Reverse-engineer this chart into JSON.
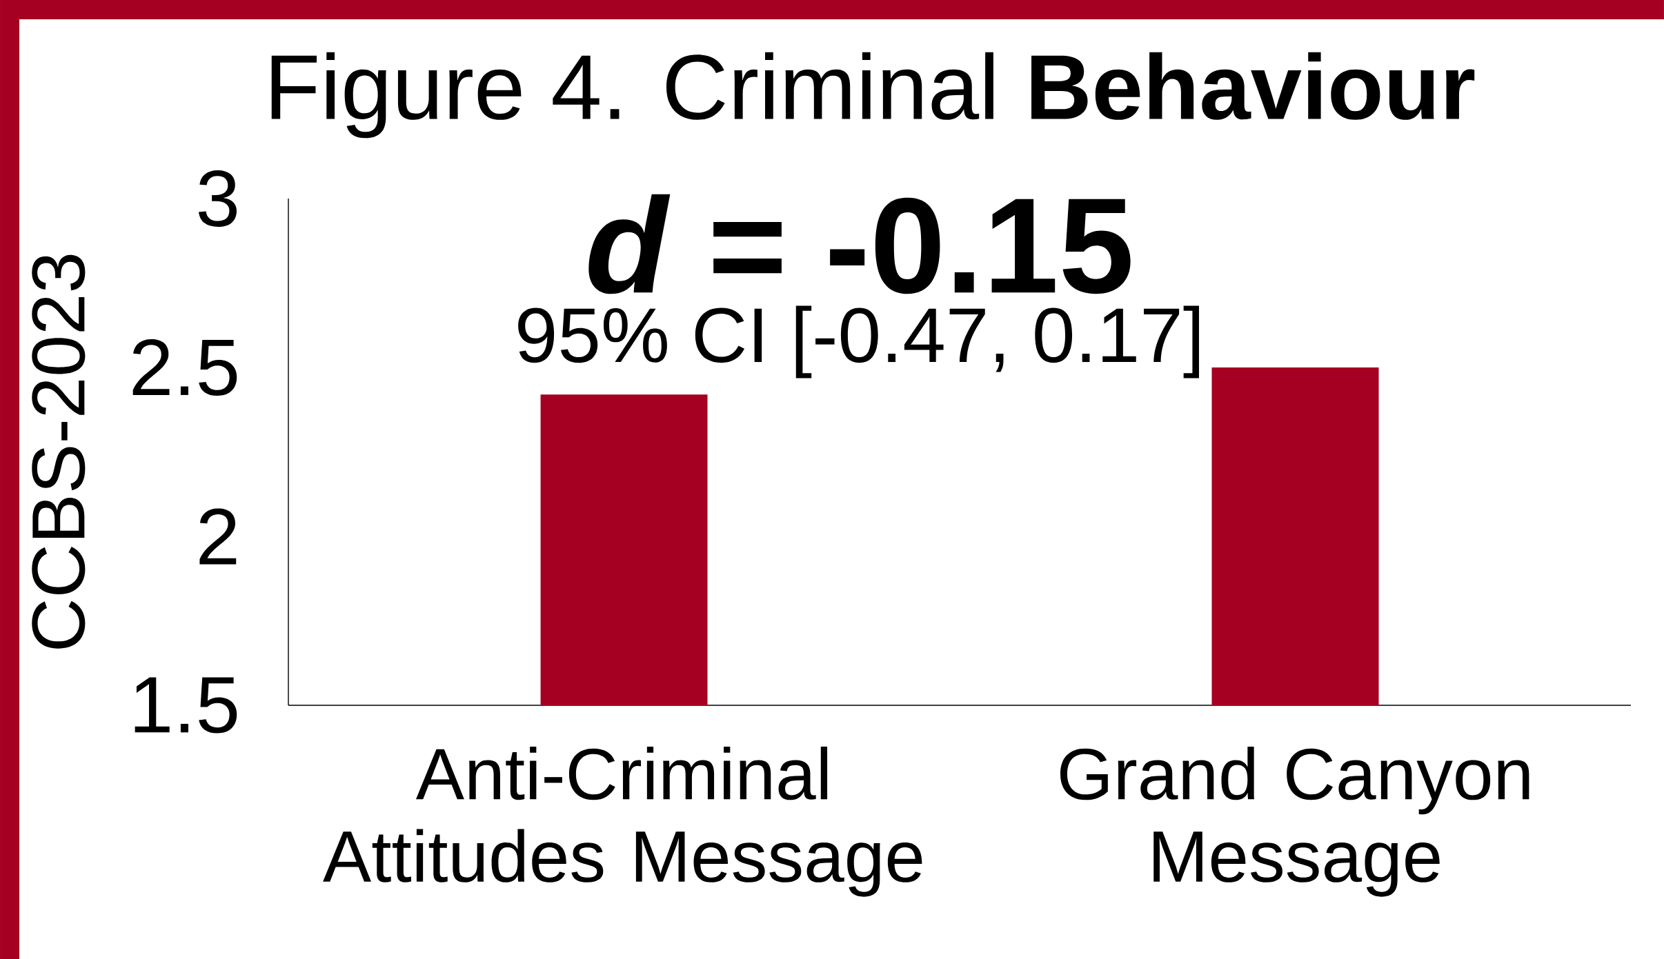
{
  "chart_data": {
    "type": "bar",
    "title": "Figure 4. Criminal **Behaviour**",
    "ylabel": "CCBS-2023",
    "categories": [
      "Anti-Criminal Attitudes Message",
      "Grand Canyon Message"
    ],
    "values": [
      2.42,
      2.5
    ],
    "color": "#a50021",
    "ylim": [
      1.5,
      3
    ],
    "yticks": [
      1.5,
      2,
      2.5,
      3
    ],
    "annotations": [
      "*d* = -0.15",
      "95% CI [-0.47, 0.17]"
    ]
  }
}
